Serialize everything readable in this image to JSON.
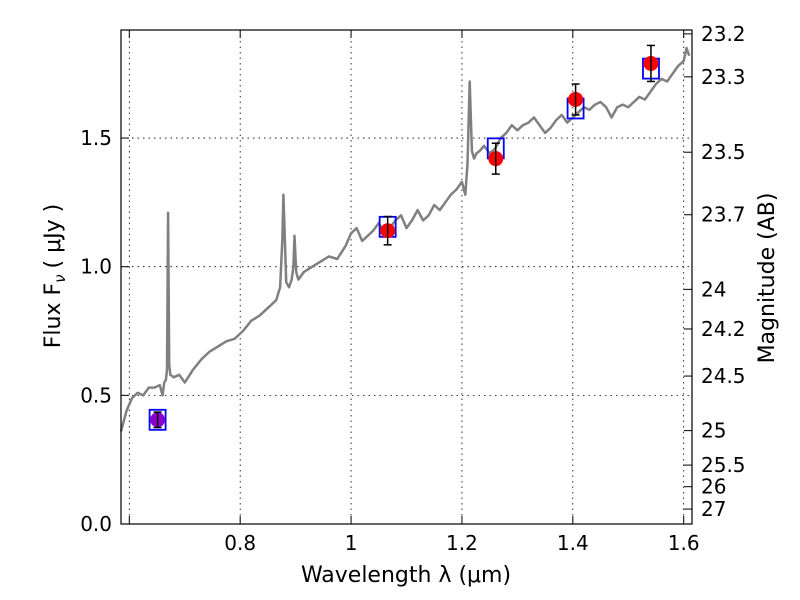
{
  "chart_data": {
    "type": "scatter",
    "xlabel": "Wavelength  λ (μm)",
    "ylabel": "Flux  F",
    "ylabel_sub": "ν",
    "ylabel_unit": "( μJy )",
    "y2label": "Magnitude (AB)",
    "xlim": [
      0.585,
      1.615
    ],
    "ylim": [
      0.0,
      1.92
    ],
    "grid": true,
    "xticks": [
      {
        "value": 0.6,
        "label": ""
      },
      {
        "value": 0.8,
        "label": "0.8"
      },
      {
        "value": 1.0,
        "label": "1"
      },
      {
        "value": 1.2,
        "label": "1.2"
      },
      {
        "value": 1.4,
        "label": "1.4"
      },
      {
        "value": 1.6,
        "label": "1.6"
      }
    ],
    "yticks": [
      {
        "value": 0.0,
        "label": "0.0"
      },
      {
        "value": 0.5,
        "label": "0.5"
      },
      {
        "value": 1.0,
        "label": "1.0"
      },
      {
        "value": 1.5,
        "label": "1.5"
      }
    ],
    "y2ticks": [
      {
        "flux": 1.905,
        "label": "23.2"
      },
      {
        "flux": 1.738,
        "label": "23.3"
      },
      {
        "flux": 1.445,
        "label": "23.5"
      },
      {
        "flux": 1.202,
        "label": "23.7"
      },
      {
        "flux": 0.912,
        "label": "24"
      },
      {
        "flux": 0.758,
        "label": "24.2"
      },
      {
        "flux": 0.575,
        "label": "24.5"
      },
      {
        "flux": 0.363,
        "label": "25"
      },
      {
        "flux": 0.229,
        "label": "25.5"
      },
      {
        "flux": 0.145,
        "label": "26"
      },
      {
        "flux": 0.058,
        "label": "27"
      }
    ],
    "series": [
      {
        "kind": "line",
        "color": "#808080",
        "x": [
          0.585,
          0.595,
          0.605,
          0.615,
          0.625,
          0.635,
          0.645,
          0.655,
          0.66,
          0.663,
          0.666,
          0.668,
          0.67,
          0.672,
          0.674,
          0.68,
          0.69,
          0.7,
          0.715,
          0.73,
          0.745,
          0.76,
          0.775,
          0.79,
          0.805,
          0.82,
          0.835,
          0.85,
          0.865,
          0.872,
          0.876,
          0.878,
          0.88,
          0.883,
          0.888,
          0.893,
          0.896,
          0.898,
          0.901,
          0.905,
          0.915,
          0.93,
          0.945,
          0.96,
          0.975,
          0.99,
          1.0,
          1.01,
          1.02,
          1.03,
          1.04,
          1.05,
          1.06,
          1.07,
          1.08,
          1.09,
          1.1,
          1.11,
          1.12,
          1.13,
          1.14,
          1.15,
          1.16,
          1.17,
          1.18,
          1.19,
          1.2,
          1.206,
          1.21,
          1.214,
          1.218,
          1.222,
          1.226,
          1.232,
          1.24,
          1.25,
          1.26,
          1.27,
          1.28,
          1.29,
          1.3,
          1.31,
          1.32,
          1.33,
          1.34,
          1.35,
          1.36,
          1.37,
          1.38,
          1.39,
          1.4,
          1.41,
          1.42,
          1.43,
          1.44,
          1.45,
          1.46,
          1.47,
          1.48,
          1.49,
          1.5,
          1.51,
          1.52,
          1.53,
          1.54,
          1.55,
          1.56,
          1.57,
          1.58,
          1.59,
          1.6,
          1.605,
          1.61
        ],
        "y": [
          0.36,
          0.44,
          0.49,
          0.51,
          0.5,
          0.53,
          0.53,
          0.54,
          0.5,
          0.55,
          0.56,
          0.6,
          1.21,
          0.62,
          0.58,
          0.57,
          0.58,
          0.55,
          0.6,
          0.64,
          0.67,
          0.69,
          0.71,
          0.72,
          0.75,
          0.79,
          0.81,
          0.84,
          0.87,
          0.92,
          1.1,
          1.28,
          1.15,
          0.94,
          0.92,
          0.95,
          1.0,
          1.12,
          0.98,
          0.95,
          0.98,
          1.0,
          1.02,
          1.04,
          1.03,
          1.08,
          1.13,
          1.15,
          1.1,
          1.12,
          1.14,
          1.17,
          1.13,
          1.15,
          1.18,
          1.2,
          1.15,
          1.18,
          1.22,
          1.18,
          1.2,
          1.24,
          1.22,
          1.25,
          1.28,
          1.3,
          1.33,
          1.28,
          1.4,
          1.72,
          1.45,
          1.42,
          1.44,
          1.45,
          1.47,
          1.44,
          1.46,
          1.5,
          1.52,
          1.55,
          1.53,
          1.55,
          1.56,
          1.58,
          1.55,
          1.52,
          1.54,
          1.57,
          1.59,
          1.56,
          1.58,
          1.6,
          1.62,
          1.61,
          1.63,
          1.64,
          1.62,
          1.58,
          1.62,
          1.63,
          1.62,
          1.64,
          1.66,
          1.65,
          1.68,
          1.71,
          1.73,
          1.72,
          1.75,
          1.78,
          1.8,
          1.85,
          1.82
        ]
      },
      {
        "kind": "model_boxes",
        "color": "#0000ff",
        "x": [
          0.651,
          1.066,
          1.261,
          1.405,
          1.541
        ],
        "y": [
          0.405,
          1.155,
          1.46,
          1.615,
          1.77
        ]
      },
      {
        "kind": "measurements",
        "colors": [
          "#8b00cc",
          "#ff0000",
          "#ff0000",
          "#ff0000",
          "#ff0000"
        ],
        "x": [
          0.651,
          1.066,
          1.261,
          1.405,
          1.541
        ],
        "y": [
          0.405,
          1.14,
          1.42,
          1.65,
          1.79
        ],
        "yerr": [
          0.03,
          0.055,
          0.06,
          0.06,
          0.07
        ]
      }
    ]
  }
}
